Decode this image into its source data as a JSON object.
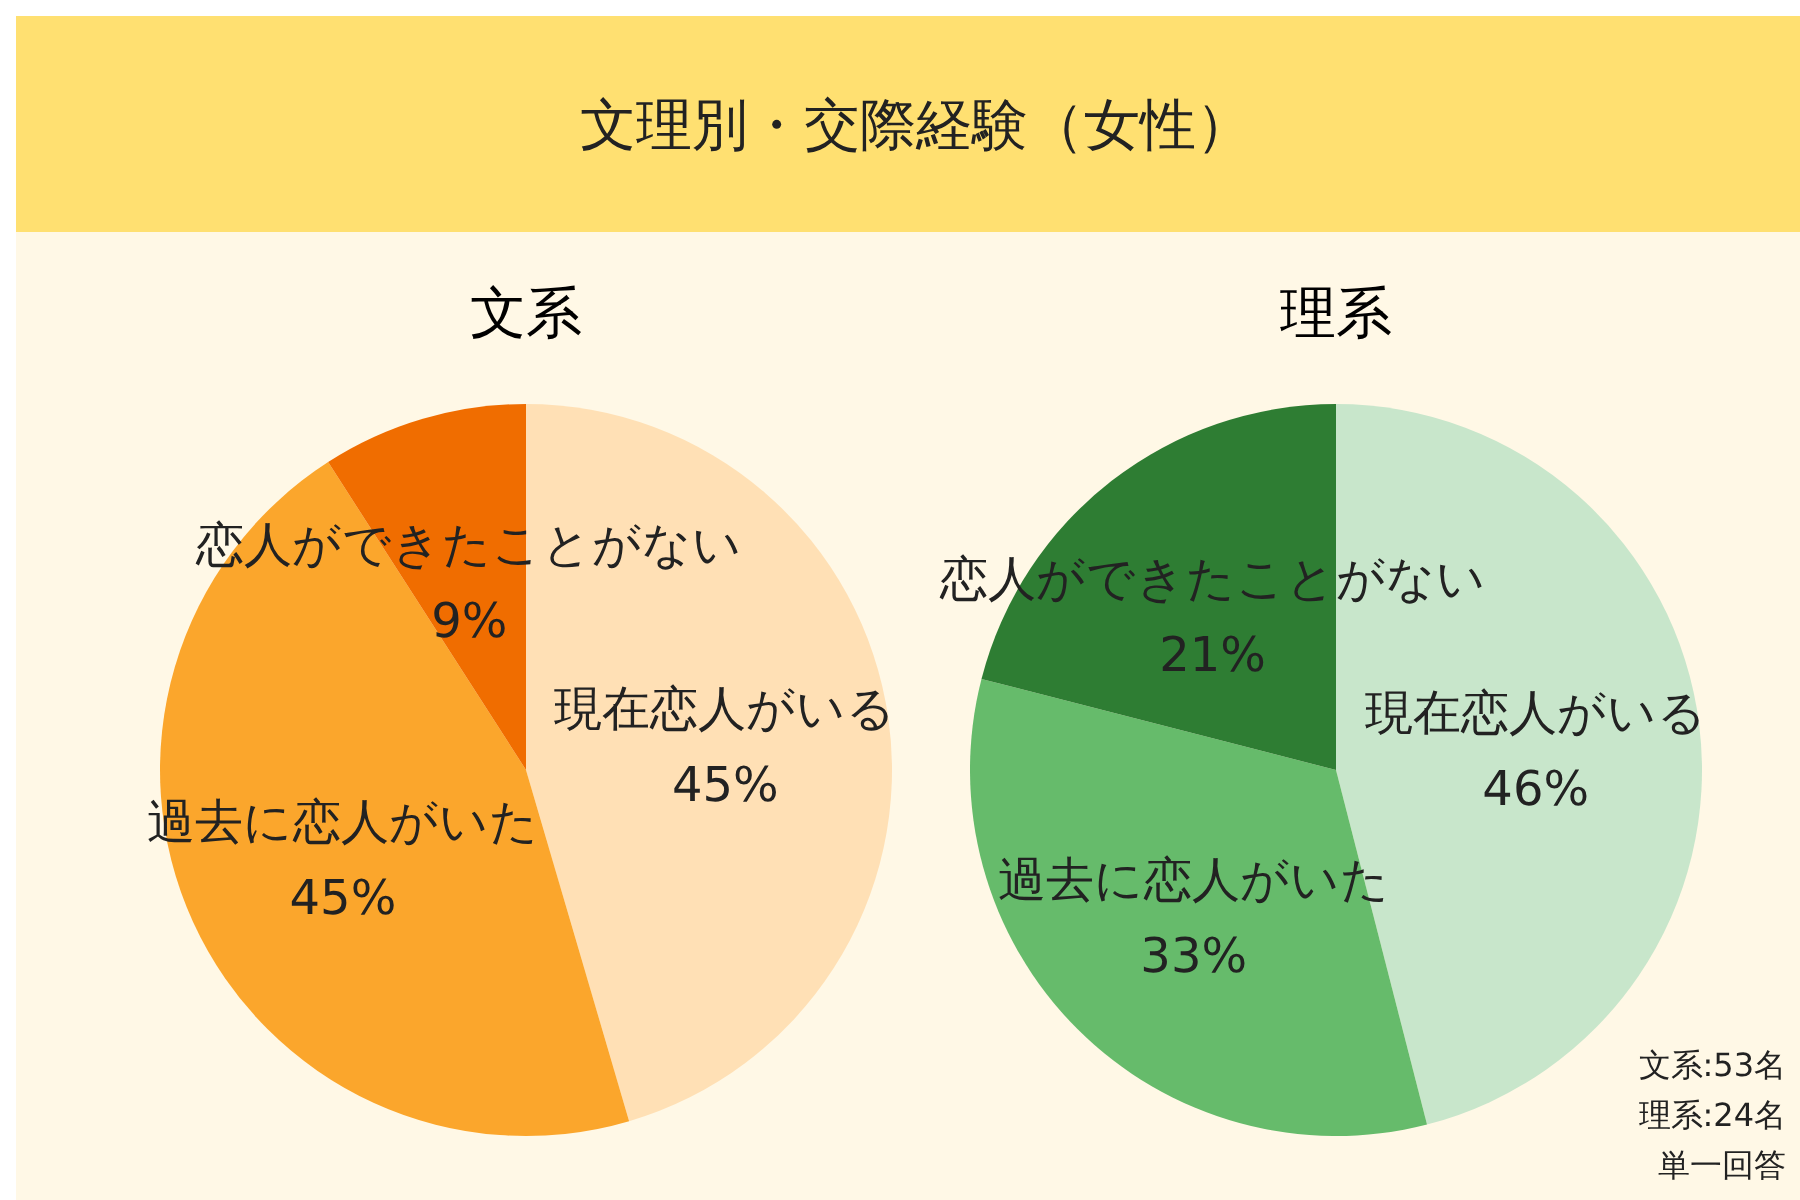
{
  "chart_data": [
    {
      "type": "pie",
      "title": "文系",
      "annotations": [
        "文理別・交際経験（女性）"
      ],
      "categories": [
        "現在恋人がいる",
        "過去に恋人がいた",
        "恋人ができたことがない"
      ],
      "values": [
        45,
        45,
        9
      ],
      "value_labels": [
        "45%",
        "45%",
        "9%"
      ],
      "colors": [
        "#ffe0b5",
        "#fba62c",
        "#f06d00"
      ]
    },
    {
      "type": "pie",
      "title": "理系",
      "annotations": [
        "文系:53名",
        "理系:24名",
        "単一回答"
      ],
      "categories": [
        "現在恋人がいる",
        "過去に恋人がいた",
        "恋人ができたことがない"
      ],
      "values": [
        46,
        33,
        21
      ],
      "value_labels": [
        "46%",
        "33%",
        "21%"
      ],
      "colors": [
        "#c8e6cb",
        "#66bb6b",
        "#2e7d33"
      ]
    }
  ]
}
